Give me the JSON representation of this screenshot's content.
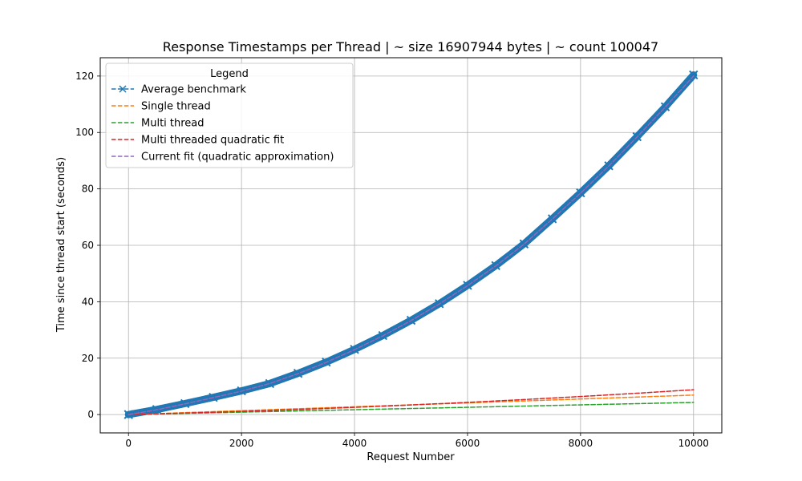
{
  "chart_data": {
    "type": "line",
    "title": "Response Timestamps per Thread | ~ size 16907944 bytes | ~ count 100047",
    "xlabel": "Request Number",
    "ylabel": "Time since thread start (seconds)",
    "xlim": [
      -500,
      10500
    ],
    "ylim": [
      -6.5,
      126.5
    ],
    "x_ticks": [
      0,
      2000,
      4000,
      6000,
      8000,
      10000
    ],
    "y_ticks": [
      0,
      20,
      40,
      60,
      80,
      100,
      120
    ],
    "grid": true,
    "legend": {
      "title": "Legend",
      "position": "top-left"
    },
    "series": [
      {
        "name": "Average benchmark",
        "color": "#1f77b4",
        "style": "dashed",
        "marker": "x",
        "x": [
          0,
          500,
          1000,
          1500,
          2000,
          2500,
          3000,
          3500,
          4000,
          4500,
          5000,
          5500,
          6000,
          6500,
          7000,
          7500,
          8000,
          8500,
          9000,
          9500,
          10000
        ],
        "y": [
          0.0,
          1.8,
          3.9,
          6.1,
          8.4,
          11.0,
          14.6,
          18.6,
          23.1,
          28.0,
          33.4,
          39.3,
          45.8,
          52.8,
          60.5,
          69.4,
          78.6,
          88.2,
          98.5,
          109.1,
          120.4
        ]
      },
      {
        "name": "Single thread",
        "color": "#ff7f0e",
        "style": "dashed",
        "x": [
          0,
          10000
        ],
        "y": [
          0.0,
          6.9
        ]
      },
      {
        "name": "Multi thread",
        "color": "#2ca02c",
        "style": "dashed",
        "x": [
          0,
          10000
        ],
        "y": [
          0.0,
          4.3
        ]
      },
      {
        "name": "Multi threaded quadratic fit",
        "color": "#d62728",
        "style": "dashed",
        "x": [
          0,
          1000,
          2000,
          3000,
          4000,
          5000,
          6000,
          7000,
          8000,
          9000,
          10000
        ],
        "y": [
          0.0,
          0.52,
          1.12,
          1.8,
          2.56,
          3.4,
          4.32,
          5.32,
          6.4,
          7.56,
          8.8
        ]
      },
      {
        "name": "Current fit (quadratic approximation)",
        "color": "#9467bd",
        "style": "dashed",
        "x": [
          0,
          500,
          1000,
          1500,
          2000,
          2500,
          3000,
          3500,
          4000,
          4500,
          5000,
          5500,
          6000,
          6500,
          7000,
          7500,
          8000,
          8500,
          9000,
          9500,
          10000
        ],
        "y": [
          0.0,
          1.7,
          3.8,
          6.0,
          8.3,
          11.0,
          14.5,
          18.5,
          23.0,
          27.9,
          33.3,
          39.2,
          45.7,
          52.7,
          60.4,
          69.3,
          78.5,
          88.1,
          98.4,
          109.0,
          120.0
        ]
      }
    ]
  }
}
